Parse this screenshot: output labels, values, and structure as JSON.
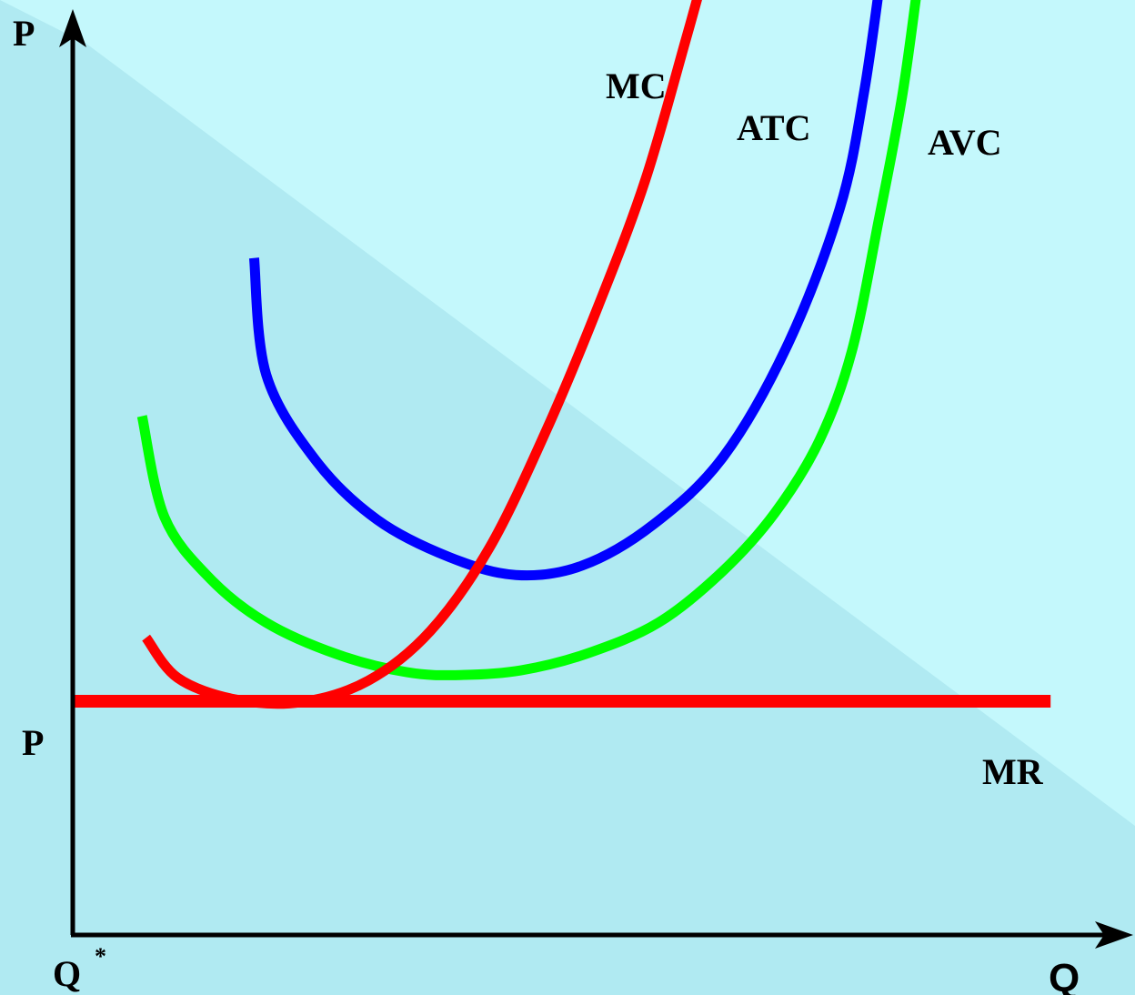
{
  "chart_data": {
    "type": "line",
    "title": "",
    "xlabel": "Q",
    "ylabel": "P",
    "grid": false,
    "legend": "none",
    "price_tick_label": "P",
    "quantity_tick_label": "Q",
    "quantity_tick_superscript": "*",
    "xlim": [
      0,
      100
    ],
    "ylim": [
      0,
      100
    ],
    "series": [
      {
        "name": "MC",
        "color": "#ff0000",
        "points": [
          [
            7.2,
            31.8
          ],
          [
            10.3,
            27.5
          ],
          [
            15.9,
            25.2
          ],
          [
            22.4,
            24.9
          ],
          [
            29.0,
            27.2
          ],
          [
            35.1,
            32.5
          ],
          [
            40.9,
            41.4
          ],
          [
            46.5,
            54.0
          ],
          [
            51.6,
            67.3
          ],
          [
            56.2,
            80.7
          ],
          [
            60.2,
            95.8
          ],
          [
            63.0,
            106.8
          ]
        ]
      },
      {
        "name": "ATC",
        "color": "#0000ff",
        "points": [
          [
            17.8,
            72.4
          ],
          [
            19.0,
            59.9
          ],
          [
            23.9,
            50.7
          ],
          [
            29.9,
            44.4
          ],
          [
            37.0,
            40.4
          ],
          [
            43.5,
            38.5
          ],
          [
            50.0,
            39.5
          ],
          [
            57.0,
            43.9
          ],
          [
            63.9,
            51.2
          ],
          [
            70.3,
            63.4
          ],
          [
            75.3,
            77.7
          ],
          [
            77.7,
            90.2
          ],
          [
            79.7,
            105.6
          ]
        ]
      },
      {
        "name": "AVC",
        "color": "#00ff00",
        "points": [
          [
            6.8,
            55.5
          ],
          [
            9.0,
            44.7
          ],
          [
            13.5,
            38.1
          ],
          [
            19.0,
            33.4
          ],
          [
            26.0,
            30.0
          ],
          [
            32.8,
            28.1
          ],
          [
            38.0,
            27.8
          ],
          [
            44.0,
            28.3
          ],
          [
            50.5,
            30.1
          ],
          [
            57.5,
            33.4
          ],
          [
            63.8,
            38.9
          ],
          [
            68.9,
            45.1
          ],
          [
            73.3,
            52.9
          ],
          [
            76.5,
            62.5
          ],
          [
            79.1,
            76.3
          ],
          [
            81.5,
            90.2
          ],
          [
            83.3,
            104.6
          ]
        ]
      },
      {
        "name": "MR",
        "color": "#ff0000",
        "points": [
          [
            0,
            25
          ],
          [
            96,
            25
          ]
        ]
      }
    ]
  }
}
